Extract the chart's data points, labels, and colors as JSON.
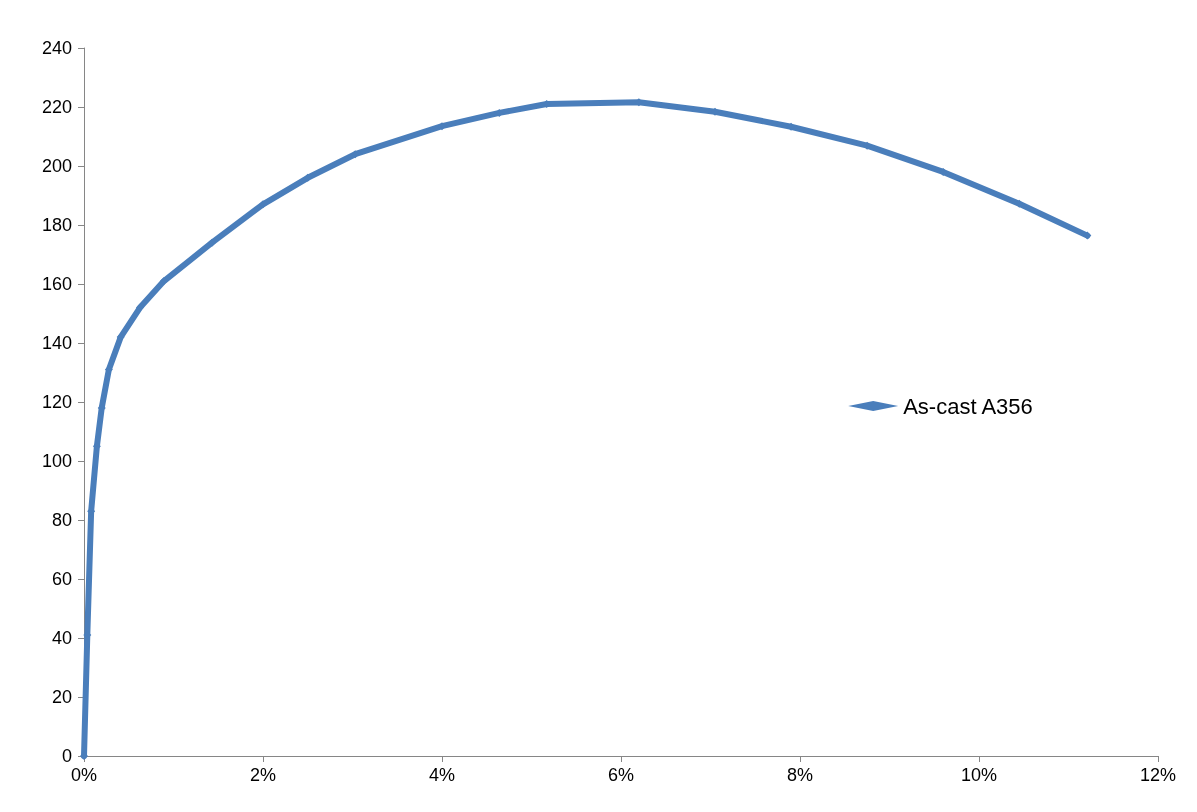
{
  "chart_data": {
    "type": "line",
    "x": [
      0,
      0.037,
      0.08,
      0.144,
      0.198,
      0.278,
      0.41,
      0.626,
      0.893,
      1.43,
      2.0,
      2.5,
      3.03,
      4.0,
      4.64,
      5.17,
      6.2,
      7.05,
      7.9,
      8.75,
      9.6,
      10.45,
      11.21
    ],
    "series": [
      {
        "name": "As-cast A356",
        "color": "#4a7ebb",
        "values": [
          0,
          41,
          83,
          105,
          118,
          131,
          142,
          152,
          161,
          174,
          187,
          196,
          204,
          213.5,
          218,
          221,
          221.6,
          218.4,
          213.3,
          206.9,
          198,
          187.2,
          176.4
        ]
      }
    ],
    "xlim": [
      0,
      12
    ],
    "xticks": [
      {
        "value": 0,
        "label": "0%"
      },
      {
        "value": 2,
        "label": "2%"
      },
      {
        "value": 4,
        "label": "4%"
      },
      {
        "value": 6,
        "label": "6%"
      },
      {
        "value": 8,
        "label": "8%"
      },
      {
        "value": 10,
        "label": "10%"
      },
      {
        "value": 12,
        "label": "12%"
      }
    ],
    "ylim": [
      0,
      240
    ],
    "yticks": [
      0,
      20,
      40,
      60,
      80,
      100,
      120,
      140,
      160,
      180,
      200,
      220,
      240
    ],
    "grid": false,
    "legend": "right",
    "marker": "diamond",
    "line_style": "solid"
  }
}
